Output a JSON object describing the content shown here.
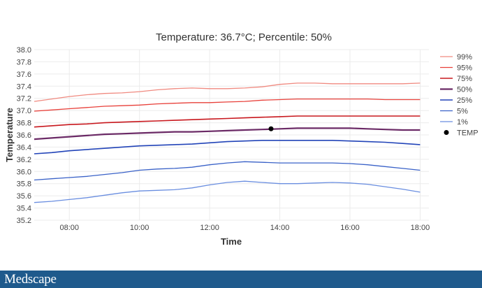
{
  "chart_data": {
    "type": "line",
    "title": "Temperature: 36.7°C; Percentile: 50%",
    "xlabel": "Time",
    "ylabel": "Temperature",
    "xlim": [
      7.0,
      18.25
    ],
    "ylim": [
      35.2,
      38.0
    ],
    "x_ticks": [
      8,
      10,
      12,
      14,
      16,
      18
    ],
    "x_tick_labels": [
      "08:00",
      "10:00",
      "12:00",
      "14:00",
      "16:00",
      "18:00"
    ],
    "y_ticks": [
      35.2,
      35.4,
      35.6,
      35.8,
      36.0,
      36.2,
      36.4,
      36.6,
      36.8,
      37.0,
      37.2,
      37.4,
      37.6,
      37.8,
      38.0
    ],
    "y_tick_labels": [
      "35.2",
      "35.4",
      "35.6",
      "35.8",
      "36.0",
      "36.2",
      "36.4",
      "36.6",
      "36.8",
      "37.0",
      "37.2",
      "37.4",
      "37.6",
      "37.8",
      "38.0"
    ],
    "grid": true,
    "legend_position": "right",
    "x": [
      7.0,
      7.5,
      8.0,
      8.5,
      9.0,
      9.5,
      10.0,
      10.5,
      11.0,
      11.5,
      12.0,
      12.5,
      13.0,
      13.5,
      14.0,
      14.5,
      15.0,
      15.5,
      16.0,
      16.5,
      17.0,
      17.5,
      18.0
    ],
    "series": [
      {
        "name": "99%",
        "color": "#f08a80",
        "width": 1.3,
        "values": [
          37.15,
          37.19,
          37.23,
          37.26,
          37.28,
          37.29,
          37.31,
          37.34,
          37.36,
          37.37,
          37.36,
          37.36,
          37.37,
          37.39,
          37.43,
          37.45,
          37.45,
          37.44,
          37.44,
          37.44,
          37.44,
          37.44,
          37.45
        ]
      },
      {
        "name": "95%",
        "color": "#e8403a",
        "width": 1.3,
        "values": [
          36.99,
          37.01,
          37.03,
          37.05,
          37.07,
          37.08,
          37.09,
          37.11,
          37.12,
          37.13,
          37.13,
          37.14,
          37.15,
          37.17,
          37.18,
          37.19,
          37.19,
          37.19,
          37.19,
          37.19,
          37.18,
          37.18,
          37.18
        ]
      },
      {
        "name": "75%",
        "color": "#c8181e",
        "width": 1.6,
        "values": [
          36.73,
          36.75,
          36.77,
          36.78,
          36.8,
          36.81,
          36.82,
          36.83,
          36.84,
          36.85,
          36.86,
          36.87,
          36.88,
          36.89,
          36.9,
          36.91,
          36.91,
          36.91,
          36.91,
          36.91,
          36.91,
          36.91,
          36.91
        ]
      },
      {
        "name": "50%",
        "color": "#6b2a66",
        "width": 2.2,
        "values": [
          36.53,
          36.55,
          36.57,
          36.59,
          36.61,
          36.62,
          36.63,
          36.64,
          36.65,
          36.65,
          36.66,
          36.67,
          36.68,
          36.69,
          36.7,
          36.71,
          36.71,
          36.71,
          36.71,
          36.7,
          36.69,
          36.68,
          36.68
        ]
      },
      {
        "name": "25%",
        "color": "#2244b8",
        "width": 1.6,
        "values": [
          36.29,
          36.31,
          36.34,
          36.36,
          36.38,
          36.4,
          36.42,
          36.43,
          36.44,
          36.45,
          36.47,
          36.49,
          36.5,
          36.51,
          36.51,
          36.51,
          36.51,
          36.51,
          36.5,
          36.49,
          36.48,
          36.46,
          36.44
        ]
      },
      {
        "name": "5%",
        "color": "#3a62c8",
        "width": 1.3,
        "values": [
          35.86,
          35.88,
          35.9,
          35.92,
          35.95,
          35.98,
          36.02,
          36.04,
          36.05,
          36.07,
          36.11,
          36.14,
          36.16,
          36.15,
          36.14,
          36.14,
          36.14,
          36.14,
          36.13,
          36.11,
          36.08,
          36.05,
          36.02
        ]
      },
      {
        "name": "1%",
        "color": "#6a8ee0",
        "width": 1.3,
        "values": [
          35.49,
          35.51,
          35.54,
          35.57,
          35.61,
          35.65,
          35.68,
          35.69,
          35.7,
          35.73,
          35.78,
          35.82,
          35.84,
          35.82,
          35.8,
          35.8,
          35.81,
          35.82,
          35.81,
          35.79,
          35.75,
          35.71,
          35.66
        ]
      }
    ],
    "point": {
      "name": "TEMP",
      "x": 13.75,
      "y": 36.7,
      "color": "#000000"
    }
  },
  "footer": {
    "brand": "Medscape"
  }
}
